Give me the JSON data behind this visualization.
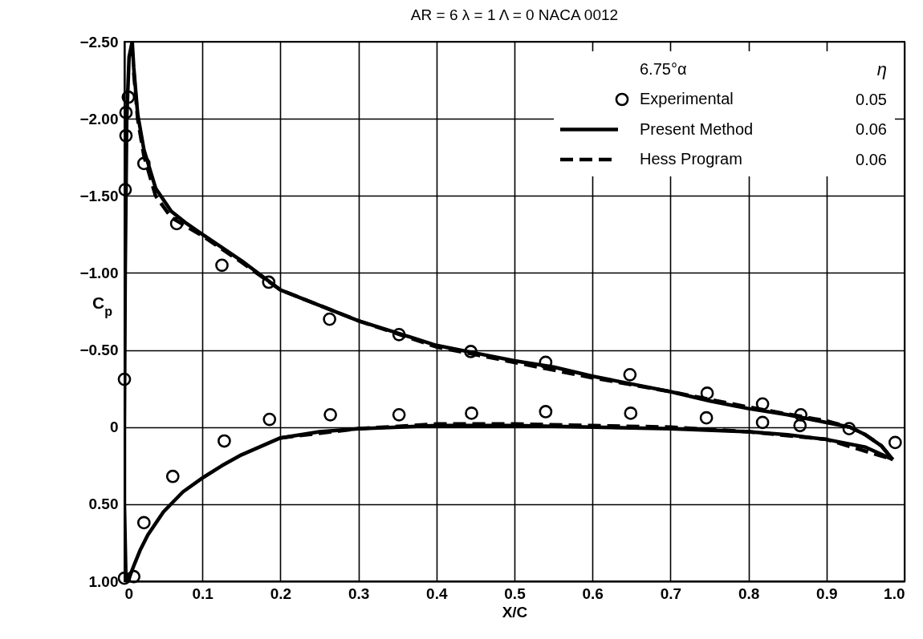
{
  "chart_data": {
    "type": "line",
    "title": "AR = 6   λ = 1   Λ = 0   NACA 0012",
    "xlabel": "X/C",
    "ylabel": "C$_{p}$",
    "legend_title": "6.75°α",
    "legend": "top right",
    "grid": true,
    "xlim": [
      0,
      1
    ],
    "xticks": [
      0,
      0.1,
      0.2,
      0.3,
      0.4,
      0.5,
      0.6,
      0.7,
      0.8,
      0.9,
      {
        "value": 1,
        "label": "1.0"
      }
    ],
    "ylim": [
      1,
      -2.5
    ],
    "yticks": [
      {
        "value": -2.5,
        "label": "−2.50"
      },
      {
        "value": -2,
        "label": "−2.00"
      },
      {
        "value": -1.5,
        "label": "−1.50"
      },
      {
        "value": -1,
        "label": "−1.00"
      },
      {
        "value": -0.5,
        "label": "−0.50"
      },
      0,
      {
        "value": 0.5,
        "label": "0.50"
      },
      {
        "value": 1,
        "label": "1.00"
      }
    ],
    "annotations": [
      "η",
      "0.05",
      "0.06",
      "0.06"
    ],
    "series": [
      {
        "name": "Experimental",
        "type": "scatter",
        "marker": "circle",
        "color": "#000000",
        "x": [
          0.005,
          0.002,
          0.002,
          0.001,
          0.025,
          0.067,
          0.125,
          0.185,
          0.263,
          0.352,
          0.444,
          0.54,
          0.648,
          0.747,
          0.818,
          0.867,
          0.929,
          0.988,
          0,
          0.186,
          0.264,
          0.352,
          0.445,
          0.54,
          0.649,
          0.746,
          0.818,
          0.866,
          0.128,
          0.062,
          0.025,
          0,
          0.012
        ],
        "values": [
          -2.14,
          -2.04,
          -1.89,
          -1.54,
          -1.71,
          -1.32,
          -1.05,
          -0.94,
          -0.7,
          -0.6,
          -0.49,
          -0.42,
          -0.34,
          -0.22,
          -0.15,
          -0.08,
          0.01,
          0.1,
          -0.31,
          -0.05,
          -0.08,
          -0.08,
          -0.09,
          -0.1,
          -0.09,
          -0.06,
          -0.03,
          -0.01,
          0.09,
          0.32,
          0.62,
          0.98,
          0.97
        ]
      },
      {
        "name": "Present Method",
        "type": "line",
        "line_style": "solid",
        "color": "#000000",
        "x": [
          0.002,
          0,
          0,
          0.001,
          0.003,
          0.006,
          0.01,
          0.012,
          0.017,
          0.025,
          0.04,
          0.06,
          0.08,
          0.1,
          0.15,
          0.2,
          0.25,
          0.3,
          0.35,
          0.4,
          0.45,
          0.5,
          0.55,
          0.6,
          0.65,
          0.7,
          0.75,
          0.8,
          0.85,
          0.9,
          0.93,
          0.95,
          0.97,
          0.985
        ],
        "values": [
          1,
          0.5,
          0,
          -1,
          -2,
          -2.4,
          -2.5,
          -2.33,
          -2.03,
          -1.8,
          -1.55,
          -1.4,
          -1.32,
          -1.25,
          -1.08,
          -0.89,
          -0.79,
          -0.69,
          -0.61,
          -0.53,
          -0.48,
          -0.43,
          -0.39,
          -0.33,
          -0.28,
          -0.23,
          -0.17,
          -0.12,
          -0.08,
          -0.03,
          0,
          0.05,
          0.12,
          0.21
        ]
      },
      {
        "type": "line",
        "line_style": "solid",
        "color": "#000000",
        "x": [
          0.002,
          0.006,
          0.012,
          0.02,
          0.03,
          0.05,
          0.075,
          0.1,
          0.125,
          0.15,
          0.2,
          0.25,
          0.3,
          0.4,
          0.5,
          0.6,
          0.7,
          0.8,
          0.85,
          0.9,
          0.95,
          0.985
        ],
        "values": [
          1,
          0.98,
          0.9,
          0.8,
          0.7,
          0.55,
          0.42,
          0.33,
          0.25,
          0.18,
          0.07,
          0.03,
          0.01,
          -0.01,
          -0.01,
          0,
          0.01,
          0.03,
          0.05,
          0.08,
          0.13,
          0.21
        ]
      },
      {
        "name": "Hess Program",
        "type": "line",
        "line_style": "dashed",
        "color": "#000000",
        "x": [
          0.012,
          0.017,
          0.025,
          0.04,
          0.06,
          0.08,
          0.1,
          0.15,
          0.2,
          0.3,
          0.4,
          0.45,
          0.5,
          0.6,
          0.7,
          0.8,
          0.9,
          0.93,
          0.95,
          0.97,
          0.985
        ],
        "values": [
          -2.3,
          -2,
          -1.76,
          -1.5,
          -1.36,
          -1.3,
          -1.24,
          -1.07,
          -0.89,
          -0.69,
          -0.52,
          -0.47,
          -0.42,
          -0.32,
          -0.23,
          -0.13,
          -0.04,
          0,
          0.05,
          0.12,
          0.21
        ]
      },
      {
        "type": "line",
        "line_style": "dashed",
        "color": "#000000",
        "x": [
          0.2,
          0.3,
          0.4,
          0.5,
          0.6,
          0.7,
          0.8,
          0.9,
          0.985
        ],
        "values": [
          0.07,
          0.01,
          -0.02,
          -0.02,
          -0.01,
          0,
          0.03,
          0.08,
          0.21
        ]
      }
    ]
  }
}
